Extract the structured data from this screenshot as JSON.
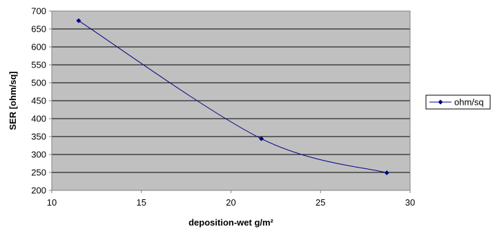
{
  "chart_data": {
    "type": "line",
    "smooth": true,
    "xlabel": "deposition-wet g/m²",
    "ylabel": "SER [ohm/sq]",
    "xlim": [
      10,
      30
    ],
    "ylim": [
      200,
      700
    ],
    "xticks": [
      10,
      15,
      20,
      25,
      30
    ],
    "yticks": [
      200,
      250,
      300,
      350,
      400,
      450,
      500,
      550,
      600,
      650,
      700
    ],
    "grid": "horizontal",
    "plot_background": "#c0c0c0",
    "legend_position": "right",
    "series": [
      {
        "name": "ohm/sq",
        "color": "#000080",
        "marker": "diamond",
        "x": [
          11.5,
          21.7,
          28.7
        ],
        "y": [
          673,
          344,
          249
        ]
      }
    ]
  }
}
